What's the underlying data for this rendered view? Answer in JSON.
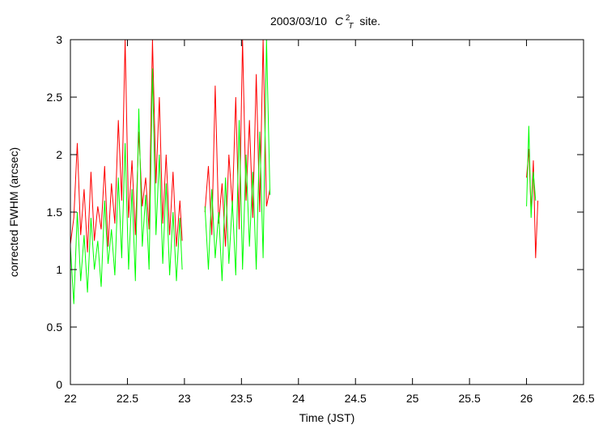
{
  "chart_data": {
    "type": "line",
    "title": {
      "prefix": "2003/03/10",
      "symbol": "C",
      "superscript": "2",
      "subscript": "T",
      "suffix": "site."
    },
    "xlabel": "Time (JST)",
    "ylabel": "corrected FWHM (arcsec)",
    "xlim": [
      22,
      26.5
    ],
    "ylim": [
      0,
      3
    ],
    "xticks": [
      "22",
      "22.5",
      "23",
      "23.5",
      "24",
      "24.5",
      "25",
      "25.5",
      "26",
      "26.5"
    ],
    "yticks": [
      "0",
      "0.5",
      "1",
      "1.5",
      "2",
      "2.5",
      "3"
    ],
    "grid": false,
    "legend": "none",
    "series": [
      {
        "color": "#ff0000",
        "segments": [
          {
            "x": [
              22.0,
              22.03,
              22.06,
              22.09,
              22.12,
              22.15,
              22.18,
              22.21,
              22.24,
              22.27,
              22.3,
              22.33,
              22.36,
              22.39,
              22.42,
              22.45,
              22.48,
              22.51,
              22.54,
              22.57,
              22.6,
              22.63,
              22.66,
              22.69,
              22.72,
              22.75,
              22.78,
              22.81,
              22.84,
              22.87,
              22.9,
              22.93,
              22.96,
              22.98
            ],
            "y": [
              1.22,
              1.45,
              2.1,
              1.3,
              1.7,
              1.15,
              1.85,
              1.25,
              1.55,
              1.35,
              1.9,
              1.2,
              1.75,
              1.4,
              2.3,
              1.6,
              3.0,
              1.45,
              1.95,
              1.3,
              2.2,
              1.55,
              1.8,
              1.35,
              3.0,
              1.75,
              2.5,
              1.4,
              2.0,
              1.3,
              1.85,
              1.2,
              1.6,
              1.25
            ]
          },
          {
            "x": [
              23.18,
              23.21,
              23.24,
              23.27,
              23.3,
              23.33,
              23.36,
              23.39,
              23.42,
              23.45,
              23.48,
              23.51,
              23.54,
              23.57,
              23.6,
              23.63,
              23.66,
              23.69,
              23.72,
              23.75
            ],
            "y": [
              1.5,
              1.9,
              1.3,
              2.6,
              1.4,
              1.75,
              1.2,
              2.0,
              1.55,
              2.5,
              1.35,
              3.0,
              1.6,
              2.3,
              1.45,
              2.7,
              1.5,
              3.0,
              1.55,
              1.7
            ]
          },
          {
            "x": [
              26.0,
              26.02,
              26.04,
              26.06,
              26.08,
              26.1
            ],
            "y": [
              1.8,
              2.05,
              1.5,
              1.95,
              1.1,
              1.6
            ]
          }
        ]
      },
      {
        "color": "#00ff00",
        "segments": [
          {
            "x": [
              22.0,
              22.03,
              22.06,
              22.09,
              22.12,
              22.15,
              22.18,
              22.21,
              22.24,
              22.27,
              22.3,
              22.33,
              22.36,
              22.39,
              22.42,
              22.45,
              22.48,
              22.51,
              22.54,
              22.57,
              22.6,
              22.63,
              22.66,
              22.69,
              22.72,
              22.75,
              22.78,
              22.81,
              22.84,
              22.87,
              22.9,
              22.93,
              22.96,
              22.98
            ],
            "y": [
              1.2,
              0.7,
              1.5,
              0.9,
              1.3,
              0.8,
              1.45,
              1.0,
              1.25,
              0.85,
              1.6,
              1.05,
              1.35,
              0.95,
              1.8,
              1.1,
              2.1,
              1.0,
              1.7,
              0.9,
              2.4,
              1.2,
              1.65,
              1.0,
              2.75,
              1.3,
              2.0,
              1.05,
              1.75,
              0.95,
              1.5,
              0.9,
              1.45,
              1.0
            ]
          },
          {
            "x": [
              23.18,
              23.21,
              23.24,
              23.27,
              23.3,
              23.33,
              23.36,
              23.39,
              23.42,
              23.45,
              23.48,
              23.51,
              23.54,
              23.57,
              23.6,
              23.63,
              23.66,
              23.69,
              23.72,
              23.75
            ],
            "y": [
              1.55,
              1.0,
              1.7,
              1.1,
              1.5,
              0.9,
              1.8,
              1.05,
              1.6,
              0.95,
              2.3,
              1.0,
              2.0,
              1.2,
              1.85,
              1.0,
              2.2,
              1.1,
              3.0,
              1.65
            ]
          },
          {
            "x": [
              26.0,
              26.02,
              26.04,
              26.06,
              26.08
            ],
            "y": [
              1.55,
              2.25,
              1.45,
              1.85,
              1.6
            ]
          }
        ]
      }
    ]
  }
}
